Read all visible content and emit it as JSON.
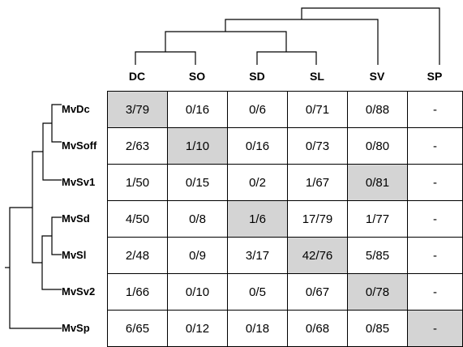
{
  "columns": [
    "DC",
    "SO",
    "SD",
    "SL",
    "SV",
    "SP"
  ],
  "rows": [
    {
      "label": "MvDc",
      "cells": [
        "3/79",
        "0/16",
        "0/6",
        "0/71",
        "0/88",
        "-"
      ],
      "shaded_col": 0
    },
    {
      "label": "MvSoff",
      "cells": [
        "2/63",
        "1/10",
        "0/16",
        "0/73",
        "0/80",
        "-"
      ],
      "shaded_col": 1
    },
    {
      "label": "MvSv1",
      "cells": [
        "1/50",
        "0/15",
        "0/2",
        "1/67",
        "0/81",
        "-"
      ],
      "shaded_col": 4
    },
    {
      "label": "MvSd",
      "cells": [
        "4/50",
        "0/8",
        "1/6",
        "17/79",
        "1/77",
        "-"
      ],
      "shaded_col": 2
    },
    {
      "label": "MvSl",
      "cells": [
        "2/48",
        "0/9",
        "3/17",
        "42/76",
        "5/85",
        "-"
      ],
      "shaded_col": 3
    },
    {
      "label": "MvSv2",
      "cells": [
        "1/66",
        "0/10",
        "0/5",
        "0/67",
        "0/78",
        "-"
      ],
      "shaded_col": 4
    },
    {
      "label": "MvSp",
      "cells": [
        "6/65",
        "0/12",
        "0/18",
        "0/68",
        "0/85",
        "-"
      ],
      "shaded_col": 5
    }
  ],
  "colors": {
    "shaded_cell": "#d4d4d4",
    "line": "#000000"
  }
}
